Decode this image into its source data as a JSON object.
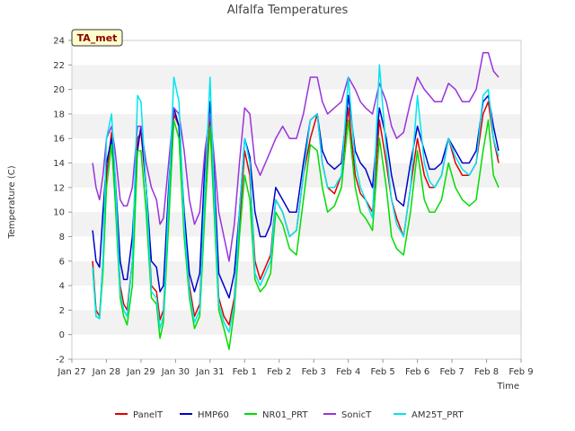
{
  "chart_data": {
    "type": "line",
    "title": "Alfalfa Temperatures",
    "xlabel": "Time",
    "ylabel": "Temperature (C)",
    "badge": "TA_met",
    "x_ticks": [
      "Jan 27",
      "Jan 28",
      "Jan 29",
      "Jan 30",
      "Jan 31",
      "Feb 1",
      "Feb 2",
      "Feb 3",
      "Feb 4",
      "Feb 5",
      "Feb 6",
      "Feb 7",
      "Feb 8",
      "Feb 9"
    ],
    "y_ticks": [
      -2,
      0,
      2,
      4,
      6,
      8,
      10,
      12,
      14,
      16,
      18,
      20,
      22,
      24
    ],
    "xlim": [
      0,
      13
    ],
    "ylim": [
      -2,
      24
    ],
    "grid": "horizontal alternating bands",
    "legend_position": "bottom",
    "x_unit": "days since Jan 27",
    "series": [
      {
        "name": "PanelT",
        "color": "#e00000",
        "x": [
          0.6,
          0.7,
          0.8,
          0.9,
          1.0,
          1.15,
          1.25,
          1.4,
          1.5,
          1.6,
          1.75,
          1.9,
          2.0,
          2.15,
          2.3,
          2.45,
          2.55,
          2.65,
          2.8,
          2.95,
          3.1,
          3.25,
          3.4,
          3.55,
          3.7,
          3.85,
          4.0,
          4.1,
          4.25,
          4.4,
          4.55,
          4.7,
          4.85,
          5.0,
          5.15,
          5.3,
          5.45,
          5.6,
          5.75,
          5.9,
          6.1,
          6.3,
          6.5,
          6.7,
          6.9,
          7.1,
          7.25,
          7.4,
          7.6,
          7.8,
          8.0,
          8.2,
          8.35,
          8.5,
          8.7,
          8.9,
          9.1,
          9.25,
          9.4,
          9.6,
          9.8,
          10.0,
          10.2,
          10.35,
          10.5,
          10.7,
          10.9,
          11.1,
          11.3,
          11.5,
          11.7,
          11.9,
          12.05,
          12.2,
          12.35
        ],
        "y": [
          6,
          2,
          1.5,
          6,
          13,
          16.5,
          12,
          4,
          2.5,
          2,
          6,
          16,
          16.5,
          12,
          4,
          3.5,
          1.2,
          2,
          10,
          18,
          17,
          9,
          4,
          1.5,
          2.5,
          12,
          17.5,
          12,
          3,
          1.5,
          0.8,
          3,
          9,
          15,
          13,
          6,
          4.5,
          5.5,
          6.5,
          11,
          10,
          8,
          8.5,
          13,
          16,
          18,
          14,
          12,
          11.5,
          13,
          18.5,
          13,
          11.5,
          11,
          10,
          17.5,
          14,
          11,
          9.5,
          8,
          12,
          16,
          13,
          12,
          12,
          13,
          16,
          14,
          13,
          13,
          14,
          18,
          19,
          16,
          14
        ]
      },
      {
        "name": "HMP60",
        "color": "#0000cc",
        "x": [
          0.6,
          0.7,
          0.8,
          0.9,
          1.0,
          1.15,
          1.25,
          1.4,
          1.5,
          1.6,
          1.75,
          1.9,
          2.0,
          2.15,
          2.3,
          2.45,
          2.55,
          2.65,
          2.8,
          2.95,
          3.1,
          3.25,
          3.4,
          3.55,
          3.7,
          3.85,
          4.0,
          4.1,
          4.25,
          4.4,
          4.55,
          4.7,
          4.85,
          5.0,
          5.15,
          5.3,
          5.45,
          5.6,
          5.75,
          5.9,
          6.1,
          6.3,
          6.5,
          6.7,
          6.9,
          7.1,
          7.25,
          7.4,
          7.6,
          7.8,
          8.0,
          8.2,
          8.35,
          8.5,
          8.7,
          8.9,
          9.1,
          9.25,
          9.4,
          9.6,
          9.8,
          10.0,
          10.2,
          10.35,
          10.5,
          10.7,
          10.9,
          11.1,
          11.3,
          11.5,
          11.7,
          11.9,
          12.05,
          12.2,
          12.35
        ],
        "y": [
          8.5,
          6,
          5.5,
          10,
          14,
          16,
          13,
          6,
          4.5,
          4.5,
          8,
          15,
          17,
          12,
          6,
          5.5,
          3.5,
          4,
          12,
          18.5,
          17,
          10,
          5,
          3.5,
          5,
          14,
          19,
          14,
          5,
          4,
          3,
          5,
          10,
          16,
          14.5,
          10,
          8,
          8,
          9,
          12,
          11,
          10,
          10,
          14,
          17.5,
          18,
          15,
          14,
          13.5,
          14,
          19.5,
          15,
          14,
          13.5,
          12,
          18.5,
          16,
          13,
          11,
          10.5,
          14,
          17,
          15,
          13.5,
          13.5,
          14,
          16,
          15,
          14,
          14,
          15,
          19,
          19.5,
          17,
          15
        ]
      },
      {
        "name": "NR01_PRT",
        "color": "#00dd00",
        "x": [
          0.6,
          0.7,
          0.8,
          0.9,
          1.0,
          1.15,
          1.25,
          1.4,
          1.5,
          1.6,
          1.75,
          1.9,
          2.0,
          2.15,
          2.3,
          2.45,
          2.55,
          2.65,
          2.8,
          2.95,
          3.1,
          3.25,
          3.4,
          3.55,
          3.7,
          3.85,
          4.0,
          4.1,
          4.25,
          4.4,
          4.55,
          4.7,
          4.85,
          5.0,
          5.15,
          5.3,
          5.45,
          5.6,
          5.75,
          5.9,
          6.1,
          6.3,
          6.5,
          6.7,
          6.9,
          7.1,
          7.25,
          7.4,
          7.6,
          7.8,
          8.0,
          8.2,
          8.35,
          8.5,
          8.7,
          8.9,
          9.1,
          9.25,
          9.4,
          9.6,
          9.8,
          10.0,
          10.2,
          10.35,
          10.5,
          10.7,
          10.9,
          11.1,
          11.3,
          11.5,
          11.7,
          11.9,
          12.05,
          12.2,
          12.35
        ],
        "y": [
          5.5,
          1.5,
          1.3,
          5,
          12,
          15.5,
          11,
          3,
          1.5,
          0.8,
          4,
          15,
          15,
          10,
          3,
          2.5,
          -0.3,
          1,
          9,
          17.5,
          16,
          8,
          3,
          0.5,
          1.5,
          10,
          17,
          11,
          2,
          0.5,
          -1.2,
          2,
          8,
          13,
          11,
          4.5,
          3.5,
          4,
          5,
          10,
          9,
          7,
          6.5,
          11,
          15.5,
          15,
          12,
          10,
          10.5,
          12,
          17.5,
          12,
          10,
          9.5,
          8.5,
          16,
          12,
          8,
          7,
          6.5,
          10,
          15,
          11,
          10,
          10,
          11,
          14,
          12,
          11,
          10.5,
          11,
          15,
          17.5,
          13,
          12
        ]
      },
      {
        "name": "SonicT",
        "color": "#9933dd",
        "x": [
          0.6,
          0.7,
          0.8,
          0.9,
          1.0,
          1.15,
          1.25,
          1.4,
          1.5,
          1.6,
          1.75,
          1.9,
          2.0,
          2.15,
          2.3,
          2.45,
          2.55,
          2.65,
          2.8,
          2.95,
          3.1,
          3.25,
          3.4,
          3.55,
          3.7,
          3.85,
          4.0,
          4.1,
          4.25,
          4.4,
          4.55,
          4.7,
          4.85,
          5.0,
          5.15,
          5.3,
          5.45,
          5.6,
          5.75,
          5.9,
          6.1,
          6.3,
          6.5,
          6.7,
          6.9,
          7.1,
          7.25,
          7.4,
          7.6,
          7.8,
          8.0,
          8.2,
          8.35,
          8.5,
          8.7,
          8.9,
          9.1,
          9.25,
          9.4,
          9.6,
          9.8,
          10.0,
          10.2,
          10.35,
          10.5,
          10.7,
          10.9,
          11.1,
          11.3,
          11.5,
          11.7,
          11.9,
          12.05,
          12.2,
          12.35
        ],
        "y": [
          14,
          12,
          11,
          13,
          16,
          17,
          15,
          11,
          10.5,
          10.5,
          12,
          17,
          17,
          14,
          12,
          11,
          9,
          9.5,
          14,
          18.5,
          18,
          15,
          11,
          9,
          10,
          15,
          18,
          15,
          10,
          8,
          6,
          9,
          14,
          18.5,
          18,
          14,
          13,
          14,
          15,
          16,
          17,
          16,
          16,
          18,
          21,
          21,
          19,
          18,
          18.5,
          19,
          21,
          20,
          19,
          18.5,
          18,
          20.5,
          19,
          17,
          16,
          16.5,
          19,
          21,
          20,
          19.5,
          19,
          19,
          20.5,
          20,
          19,
          19,
          20,
          23,
          23,
          21.5,
          21
        ]
      },
      {
        "name": "AM25T_PRT",
        "color": "#00e5ee",
        "x": [
          0.6,
          0.7,
          0.8,
          0.9,
          1.0,
          1.15,
          1.25,
          1.4,
          1.5,
          1.6,
          1.75,
          1.9,
          2.0,
          2.15,
          2.3,
          2.45,
          2.55,
          2.65,
          2.8,
          2.95,
          3.1,
          3.25,
          3.4,
          3.55,
          3.7,
          3.85,
          4.0,
          4.1,
          4.25,
          4.4,
          4.55,
          4.7,
          4.85,
          5.0,
          5.15,
          5.3,
          5.45,
          5.6,
          5.75,
          5.9,
          6.1,
          6.3,
          6.5,
          6.7,
          6.9,
          7.1,
          7.25,
          7.4,
          7.6,
          7.8,
          8.0,
          8.2,
          8.35,
          8.5,
          8.7,
          8.9,
          9.1,
          9.25,
          9.4,
          9.6,
          9.8,
          10.0,
          10.2,
          10.35,
          10.5,
          10.7,
          10.9,
          11.1,
          11.3,
          11.5,
          11.7,
          11.9,
          12.05,
          12.2,
          12.35
        ],
        "y": [
          5.5,
          1.5,
          1.3,
          6,
          16,
          18,
          13,
          3.5,
          2,
          1.5,
          6,
          19.5,
          19,
          12,
          3.5,
          3,
          0.5,
          1.5,
          11,
          21,
          19,
          9,
          3.5,
          1,
          2,
          12,
          21,
          13,
          2.5,
          1,
          0.2,
          2.5,
          10,
          16,
          14,
          5,
          4,
          5,
          6,
          11,
          10,
          8,
          8.5,
          13,
          17.5,
          18,
          14,
          12,
          12,
          13,
          21,
          14,
          12,
          11,
          9.5,
          22,
          15,
          11,
          9,
          8,
          12,
          19.5,
          14,
          12.5,
          12,
          13,
          16,
          14.5,
          13.5,
          13,
          14,
          19.5,
          20,
          16,
          14.5
        ]
      }
    ]
  }
}
